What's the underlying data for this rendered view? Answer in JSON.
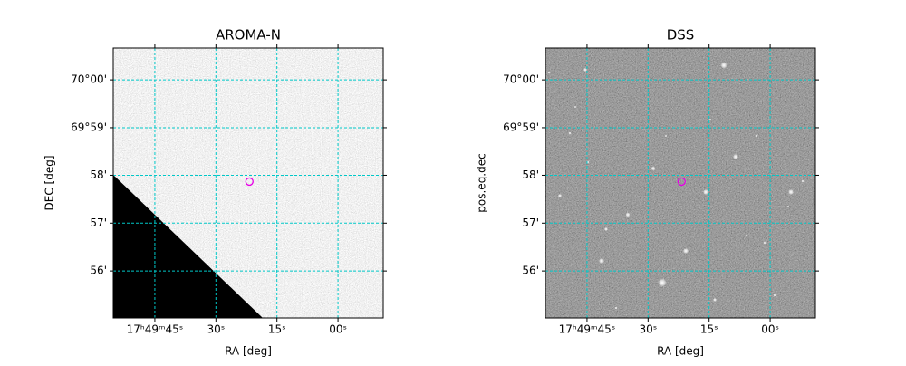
{
  "chart_data": [
    {
      "type": "image",
      "title": "AROMA-N",
      "xlabel": "RA [deg]",
      "ylabel": "DEC [deg]",
      "xlim": [
        267.4801,
        267.2037
      ],
      "ylim": [
        69.9169,
        70.0111
      ],
      "xticks": [
        {
          "value": 267.4375,
          "label": "17ʰ49ᵐ45ˢ"
        },
        {
          "value": 267.375,
          "label": "30ˢ"
        },
        {
          "value": 267.3125,
          "label": "15ˢ"
        },
        {
          "value": 267.25,
          "label": "00ˢ"
        }
      ],
      "yticks": [
        {
          "value": 70.0,
          "label": "70°00'"
        },
        {
          "value": 69.9833,
          "label": "69°59'"
        },
        {
          "value": 69.9667,
          "label": "58'"
        },
        {
          "value": 69.95,
          "label": "57'"
        },
        {
          "value": 69.9333,
          "label": "56'"
        }
      ],
      "grid": true,
      "grid_color": "#00c8c8",
      "target": [
        267.3407,
        69.9645
      ],
      "target_color": "#e600e6"
    },
    {
      "type": "image",
      "title": "DSS",
      "xlabel": "RA [deg]",
      "ylabel": "pos.eq.dec",
      "xlim": [
        267.4801,
        267.2037
      ],
      "ylim": [
        69.9169,
        70.0111
      ],
      "xticks": [
        {
          "value": 267.4375,
          "label": "17ʰ49ᵐ45ˢ"
        },
        {
          "value": 267.375,
          "label": "30ˢ"
        },
        {
          "value": 267.3125,
          "label": "15ˢ"
        },
        {
          "value": 267.25,
          "label": "00ˢ"
        }
      ],
      "yticks": [
        {
          "value": 70.0,
          "label": "70°00'"
        },
        {
          "value": 69.9833,
          "label": "69°59'"
        },
        {
          "value": 69.9667,
          "label": "58'"
        },
        {
          "value": 69.95,
          "label": "57'"
        },
        {
          "value": 69.9333,
          "label": "56'"
        }
      ],
      "grid": true,
      "grid_color": "#00c8c8",
      "target": [
        267.3407,
        69.9645
      ],
      "target_color": "#e600e6"
    }
  ]
}
